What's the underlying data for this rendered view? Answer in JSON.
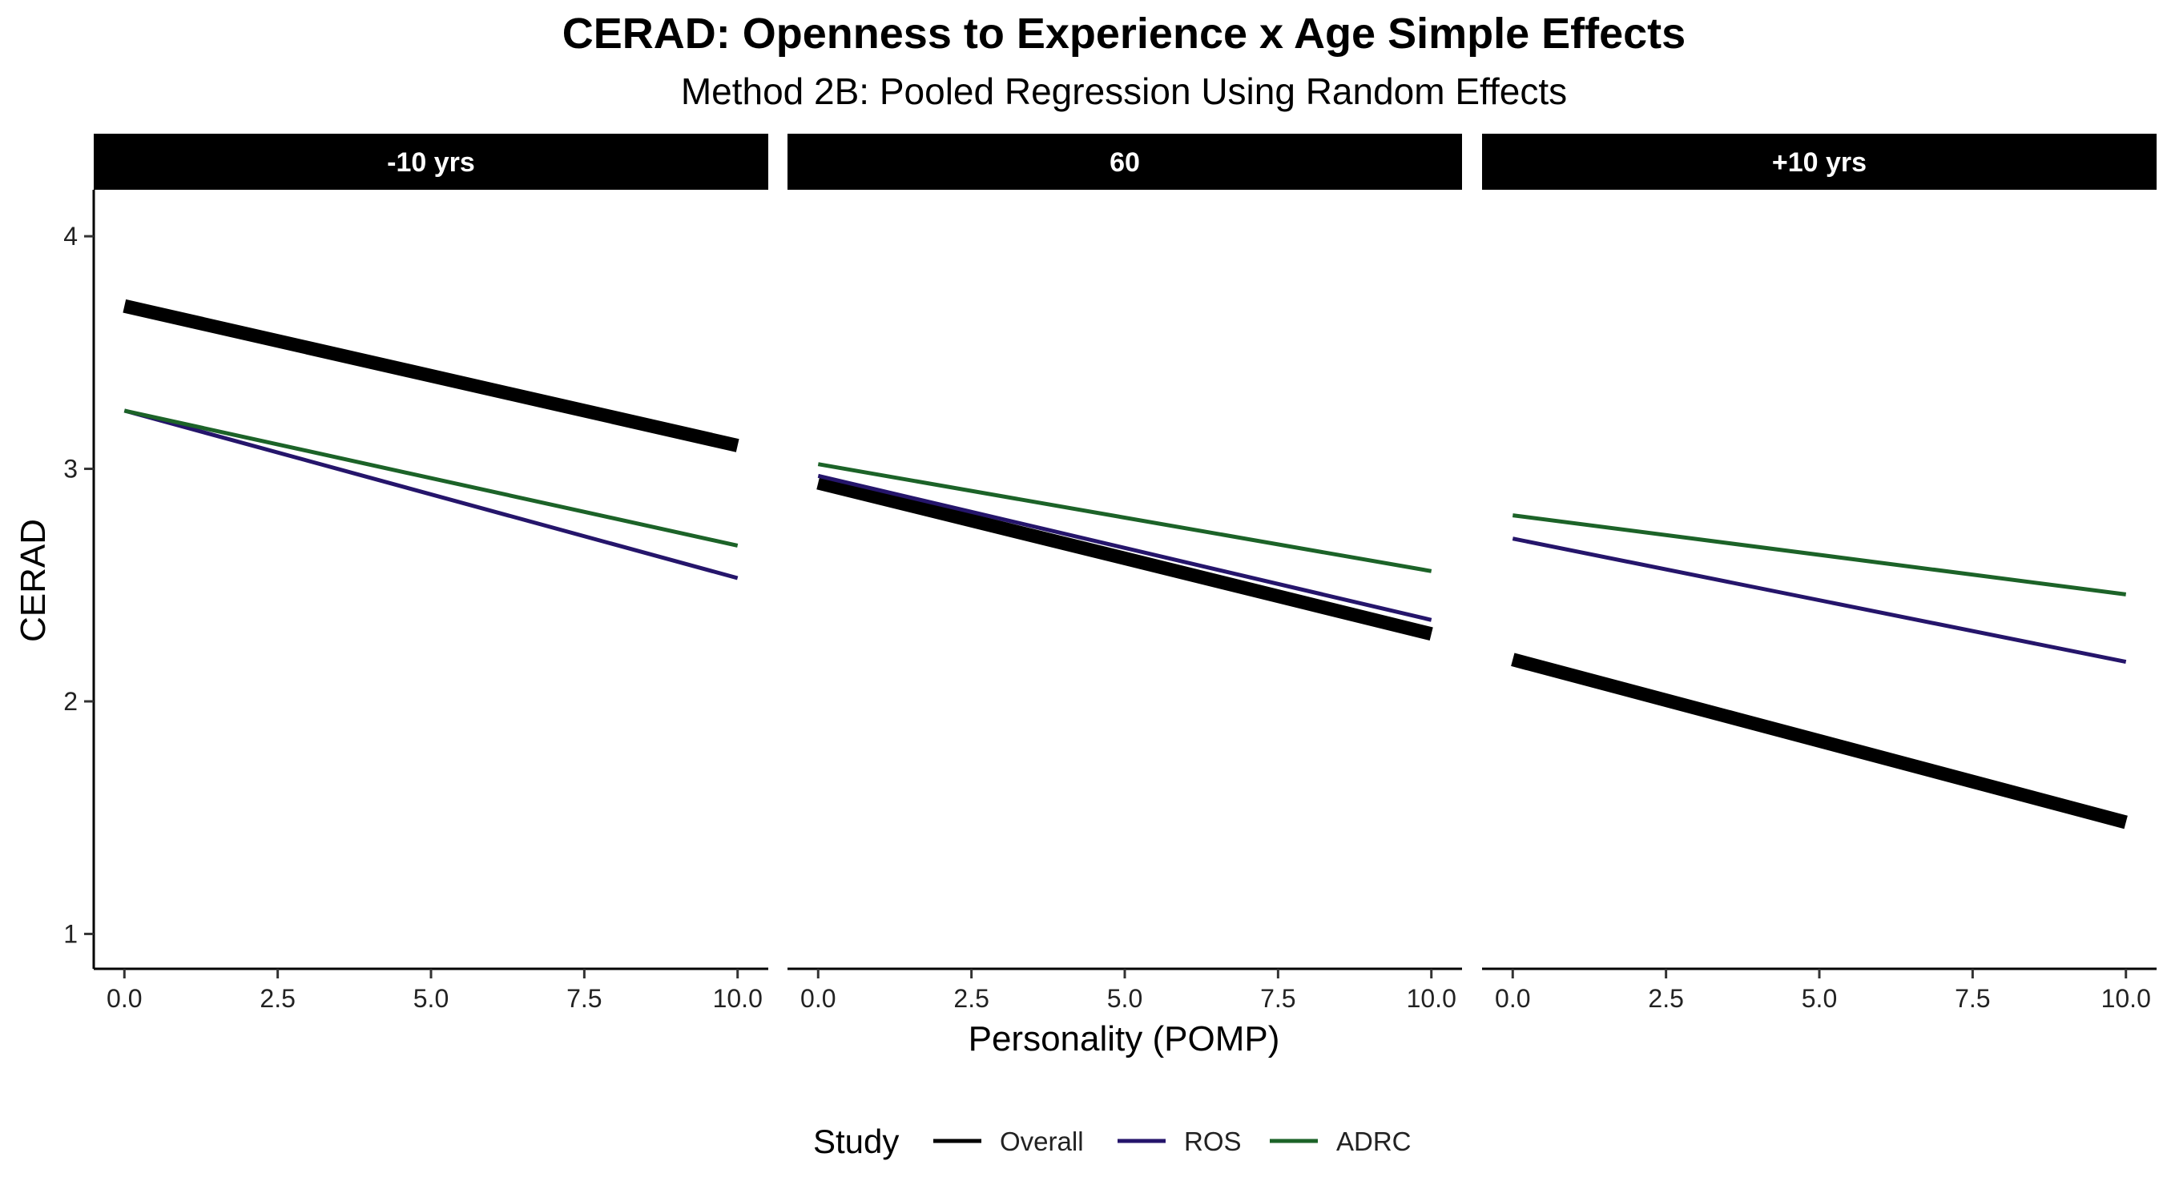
{
  "chart_data": {
    "type": "line",
    "title": "CERAD: Openness to Experience x Age Simple Effects",
    "subtitle": "Method 2B: Pooled Regression Using Random Effects",
    "xlabel": "Personality (POMP)",
    "ylabel": "CERAD",
    "xlim": [
      -0.5,
      10.5
    ],
    "ylim": [
      0.85,
      4.2
    ],
    "x_ticks": [
      0,
      2.5,
      5,
      7.5,
      10
    ],
    "x_tick_labels": [
      "0.0",
      "2.5",
      "5.0",
      "7.5",
      "10.0"
    ],
    "y_ticks": [
      1,
      2,
      3,
      4
    ],
    "y_tick_labels": [
      "1",
      "2",
      "3",
      "4"
    ],
    "legend": {
      "title": "Study",
      "position": "bottom",
      "entries": [
        "Overall",
        "ROS",
        "ADRC"
      ]
    },
    "colors": {
      "Overall": "#000000",
      "ROS": "#25156b",
      "ADRC": "#1c6328",
      "strip_bg": "#000000"
    },
    "panels": [
      {
        "label": "-10 yrs",
        "series": [
          {
            "name": "Overall",
            "x": [
              0,
              10
            ],
            "y": [
              3.7,
              3.1
            ]
          },
          {
            "name": "ROS",
            "x": [
              0,
              10
            ],
            "y": [
              3.25,
              2.53
            ]
          },
          {
            "name": "ADRC",
            "x": [
              0,
              10
            ],
            "y": [
              3.25,
              2.67
            ]
          }
        ]
      },
      {
        "label": "60",
        "series": [
          {
            "name": "Overall",
            "x": [
              0,
              10
            ],
            "y": [
              2.94,
              2.29
            ]
          },
          {
            "name": "ROS",
            "x": [
              0,
              10
            ],
            "y": [
              2.97,
              2.35
            ]
          },
          {
            "name": "ADRC",
            "x": [
              0,
              10
            ],
            "y": [
              3.02,
              2.56
            ]
          }
        ]
      },
      {
        "label": "+10 yrs",
        "series": [
          {
            "name": "Overall",
            "x": [
              0,
              10
            ],
            "y": [
              2.18,
              1.48
            ]
          },
          {
            "name": "ROS",
            "x": [
              0,
              10
            ],
            "y": [
              2.7,
              2.17
            ]
          },
          {
            "name": "ADRC",
            "x": [
              0,
              10
            ],
            "y": [
              2.8,
              2.46
            ]
          }
        ]
      }
    ]
  }
}
